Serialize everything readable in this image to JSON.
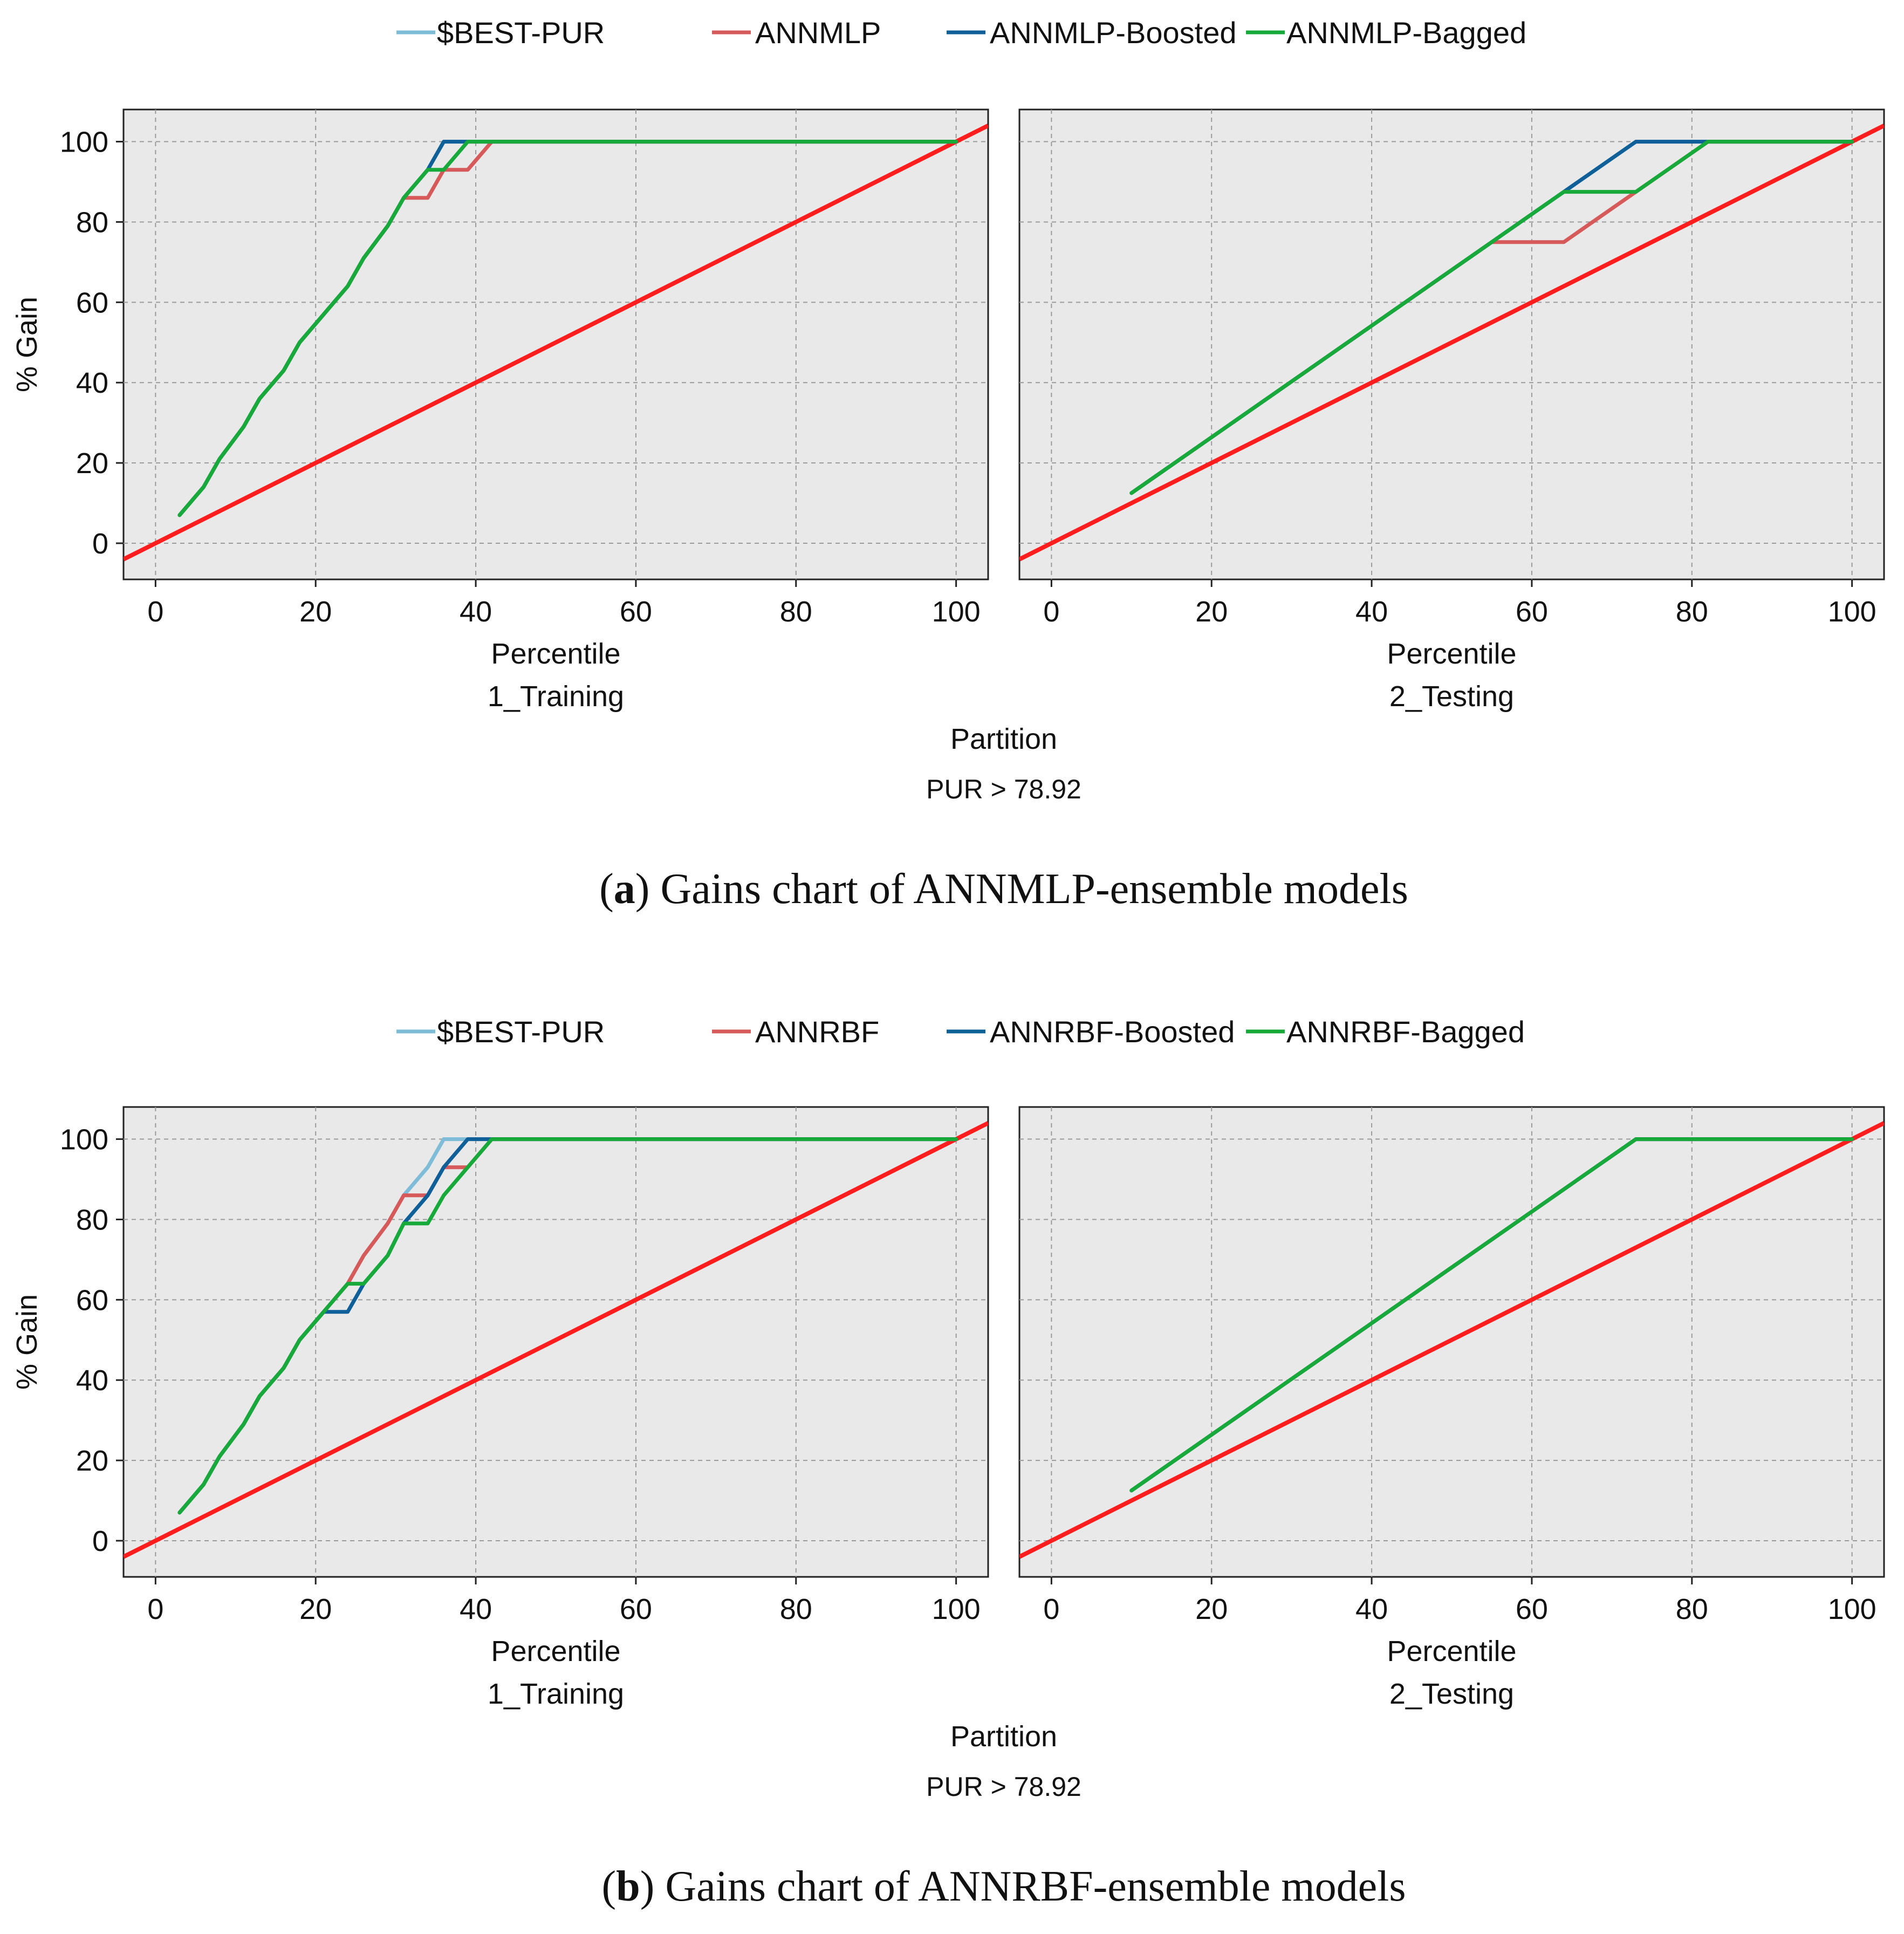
{
  "colors": {
    "best": "#7fbcd8",
    "model": "#d65a5a",
    "boosted": "#0f5f99",
    "bagged": "#17aa3a",
    "baseline": "#ff1d1d",
    "plot_bg": "#e9e9e9",
    "grid": "#9a9a9a"
  },
  "chart_data": [
    {
      "id": "a",
      "type": "line",
      "legend": [
        "$BEST-PUR",
        "ANNMLP",
        "ANNMLP-Boosted",
        "ANNMLP-Bagged"
      ],
      "ylabel": "% Gain",
      "xlabel": "Percentile",
      "partition_label": "Partition",
      "target_label": "PUR > 78.92",
      "caption_letter": "a",
      "caption_text": "Gains chart of ANNMLP-ensemble models",
      "xlim": [
        -4,
        104
      ],
      "ylim": [
        -9,
        108
      ],
      "xticks": [
        0,
        20,
        40,
        60,
        80,
        100
      ],
      "yticks": [
        0,
        20,
        40,
        60,
        80,
        100
      ],
      "panels": [
        {
          "partition": "1_Training",
          "baseline": [
            [
              -4,
              -4
            ],
            [
              104,
              104
            ]
          ],
          "series": [
            {
              "name": "$BEST-PUR",
              "color_key": "best",
              "points": [
                [
                  3,
                  7
                ],
                [
                  6,
                  14
                ],
                [
                  8,
                  21
                ],
                [
                  11,
                  29
                ],
                [
                  13,
                  36
                ],
                [
                  16,
                  43
                ],
                [
                  18,
                  50
                ],
                [
                  21,
                  57
                ],
                [
                  24,
                  64
                ],
                [
                  26,
                  71
                ],
                [
                  29,
                  79
                ],
                [
                  31,
                  86
                ],
                [
                  34,
                  93
                ],
                [
                  36,
                  100
                ],
                [
                  100,
                  100
                ]
              ]
            },
            {
              "name": "ANNMLP",
              "color_key": "model",
              "points": [
                [
                  3,
                  7
                ],
                [
                  6,
                  14
                ],
                [
                  8,
                  21
                ],
                [
                  11,
                  29
                ],
                [
                  13,
                  36
                ],
                [
                  16,
                  43
                ],
                [
                  18,
                  50
                ],
                [
                  21,
                  57
                ],
                [
                  24,
                  64
                ],
                [
                  26,
                  71
                ],
                [
                  29,
                  79
                ],
                [
                  31,
                  86
                ],
                [
                  34,
                  86
                ],
                [
                  36,
                  93
                ],
                [
                  39,
                  93
                ],
                [
                  42,
                  100
                ],
                [
                  100,
                  100
                ]
              ]
            },
            {
              "name": "ANNMLP-Boosted",
              "color_key": "boosted",
              "points": [
                [
                  3,
                  7
                ],
                [
                  6,
                  14
                ],
                [
                  8,
                  21
                ],
                [
                  11,
                  29
                ],
                [
                  13,
                  36
                ],
                [
                  16,
                  43
                ],
                [
                  18,
                  50
                ],
                [
                  21,
                  57
                ],
                [
                  24,
                  64
                ],
                [
                  26,
                  71
                ],
                [
                  29,
                  79
                ],
                [
                  31,
                  86
                ],
                [
                  34,
                  93
                ],
                [
                  36,
                  100
                ],
                [
                  100,
                  100
                ]
              ]
            },
            {
              "name": "ANNMLP-Bagged",
              "color_key": "bagged",
              "points": [
                [
                  3,
                  7
                ],
                [
                  6,
                  14
                ],
                [
                  8,
                  21
                ],
                [
                  11,
                  29
                ],
                [
                  13,
                  36
                ],
                [
                  16,
                  43
                ],
                [
                  18,
                  50
                ],
                [
                  21,
                  57
                ],
                [
                  24,
                  64
                ],
                [
                  26,
                  71
                ],
                [
                  29,
                  79
                ],
                [
                  31,
                  86
                ],
                [
                  34,
                  93
                ],
                [
                  36,
                  93
                ],
                [
                  39,
                  100
                ],
                [
                  100,
                  100
                ]
              ]
            }
          ]
        },
        {
          "partition": "2_Testing",
          "baseline": [
            [
              -4,
              -4
            ],
            [
              104,
              104
            ]
          ],
          "series": [
            {
              "name": "$BEST-PUR",
              "color_key": "best",
              "points": [
                [
                  10,
                  12.5
                ],
                [
                  55,
                  75
                ],
                [
                  64,
                  87.5
                ],
                [
                  73,
                  100
                ],
                [
                  100,
                  100
                ]
              ]
            },
            {
              "name": "ANNMLP",
              "color_key": "model",
              "points": [
                [
                  10,
                  12.5
                ],
                [
                  55,
                  75
                ],
                [
                  64,
                  75
                ],
                [
                  73,
                  87.5
                ],
                [
                  82,
                  100
                ],
                [
                  100,
                  100
                ]
              ]
            },
            {
              "name": "ANNMLP-Boosted",
              "color_key": "boosted",
              "points": [
                [
                  10,
                  12.5
                ],
                [
                  55,
                  75
                ],
                [
                  64,
                  87.5
                ],
                [
                  73,
                  100
                ],
                [
                  100,
                  100
                ]
              ]
            },
            {
              "name": "ANNMLP-Bagged",
              "color_key": "bagged",
              "points": [
                [
                  10,
                  12.5
                ],
                [
                  55,
                  75
                ],
                [
                  64,
                  87.5
                ],
                [
                  73,
                  87.5
                ],
                [
                  82,
                  100
                ],
                [
                  100,
                  100
                ]
              ]
            }
          ]
        }
      ]
    },
    {
      "id": "b",
      "type": "line",
      "legend": [
        "$BEST-PUR",
        "ANNRBF",
        "ANNRBF-Boosted",
        "ANNRBF-Bagged"
      ],
      "ylabel": "% Gain",
      "xlabel": "Percentile",
      "partition_label": "Partition",
      "target_label": "PUR > 78.92",
      "caption_letter": "b",
      "caption_text": "Gains chart of ANNRBF-ensemble models",
      "xlim": [
        -4,
        104
      ],
      "ylim": [
        -9,
        108
      ],
      "xticks": [
        0,
        20,
        40,
        60,
        80,
        100
      ],
      "yticks": [
        0,
        20,
        40,
        60,
        80,
        100
      ],
      "panels": [
        {
          "partition": "1_Training",
          "baseline": [
            [
              -4,
              -4
            ],
            [
              104,
              104
            ]
          ],
          "series": [
            {
              "name": "$BEST-PUR",
              "color_key": "best",
              "points": [
                [
                  3,
                  7
                ],
                [
                  6,
                  14
                ],
                [
                  8,
                  21
                ],
                [
                  11,
                  29
                ],
                [
                  13,
                  36
                ],
                [
                  16,
                  43
                ],
                [
                  18,
                  50
                ],
                [
                  21,
                  57
                ],
                [
                  24,
                  64
                ],
                [
                  26,
                  71
                ],
                [
                  29,
                  79
                ],
                [
                  31,
                  86
                ],
                [
                  34,
                  93
                ],
                [
                  36,
                  100
                ],
                [
                  100,
                  100
                ]
              ]
            },
            {
              "name": "ANNRBF",
              "color_key": "model",
              "points": [
                [
                  3,
                  7
                ],
                [
                  6,
                  14
                ],
                [
                  8,
                  21
                ],
                [
                  11,
                  29
                ],
                [
                  13,
                  36
                ],
                [
                  16,
                  43
                ],
                [
                  18,
                  50
                ],
                [
                  21,
                  57
                ],
                [
                  24,
                  64
                ],
                [
                  26,
                  71
                ],
                [
                  29,
                  79
                ],
                [
                  31,
                  86
                ],
                [
                  34,
                  86
                ],
                [
                  36,
                  93
                ],
                [
                  39,
                  93
                ],
                [
                  42,
                  100
                ],
                [
                  100,
                  100
                ]
              ]
            },
            {
              "name": "ANNRBF-Boosted",
              "color_key": "boosted",
              "points": [
                [
                  3,
                  7
                ],
                [
                  6,
                  14
                ],
                [
                  8,
                  21
                ],
                [
                  11,
                  29
                ],
                [
                  13,
                  36
                ],
                [
                  16,
                  43
                ],
                [
                  18,
                  50
                ],
                [
                  21,
                  57
                ],
                [
                  24,
                  57
                ],
                [
                  26,
                  64
                ],
                [
                  29,
                  71
                ],
                [
                  31,
                  79
                ],
                [
                  34,
                  86
                ],
                [
                  36,
                  93
                ],
                [
                  39,
                  100
                ],
                [
                  100,
                  100
                ]
              ]
            },
            {
              "name": "ANNRBF-Bagged",
              "color_key": "bagged",
              "points": [
                [
                  3,
                  7
                ],
                [
                  6,
                  14
                ],
                [
                  8,
                  21
                ],
                [
                  11,
                  29
                ],
                [
                  13,
                  36
                ],
                [
                  16,
                  43
                ],
                [
                  18,
                  50
                ],
                [
                  21,
                  57
                ],
                [
                  24,
                  64
                ],
                [
                  26,
                  64
                ],
                [
                  29,
                  71
                ],
                [
                  31,
                  79
                ],
                [
                  34,
                  79
                ],
                [
                  36,
                  86
                ],
                [
                  39,
                  93
                ],
                [
                  42,
                  100
                ],
                [
                  100,
                  100
                ]
              ]
            }
          ]
        },
        {
          "partition": "2_Testing",
          "baseline": [
            [
              -4,
              -4
            ],
            [
              104,
              104
            ]
          ],
          "series": [
            {
              "name": "$BEST-PUR",
              "color_key": "best",
              "points": [
                [
                  10,
                  12.5
                ],
                [
                  73,
                  100
                ],
                [
                  100,
                  100
                ]
              ]
            },
            {
              "name": "ANNRBF",
              "color_key": "model",
              "points": [
                [
                  10,
                  12.5
                ],
                [
                  73,
                  100
                ],
                [
                  100,
                  100
                ]
              ]
            },
            {
              "name": "ANNRBF-Boosted",
              "color_key": "boosted",
              "points": [
                [
                  10,
                  12.5
                ],
                [
                  73,
                  100
                ],
                [
                  100,
                  100
                ]
              ]
            },
            {
              "name": "ANNRBF-Bagged",
              "color_key": "bagged",
              "points": [
                [
                  10,
                  12.5
                ],
                [
                  73,
                  100
                ],
                [
                  100,
                  100
                ]
              ]
            }
          ]
        }
      ]
    }
  ]
}
